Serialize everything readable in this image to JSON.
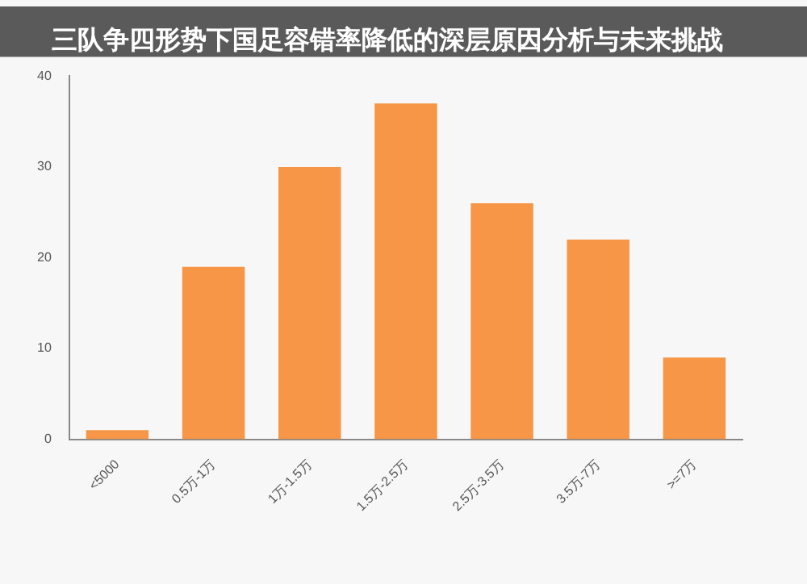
{
  "chart_data": {
    "type": "bar",
    "title": "三队争四形势下国足容错率降低的深层原因分析与未来挑战",
    "categories": [
      "<5000",
      "0.5万-1万",
      "1万-1.5万",
      "1.5万-2.5万",
      "2.5万-3.5万",
      "3.5万-7万",
      ">=7万"
    ],
    "values": [
      1,
      19,
      30,
      37,
      26,
      22,
      9
    ],
    "color": "#f79646",
    "ylim": [
      0,
      40
    ],
    "yticks": [
      0,
      10,
      20,
      30,
      40
    ],
    "grid": false
  }
}
